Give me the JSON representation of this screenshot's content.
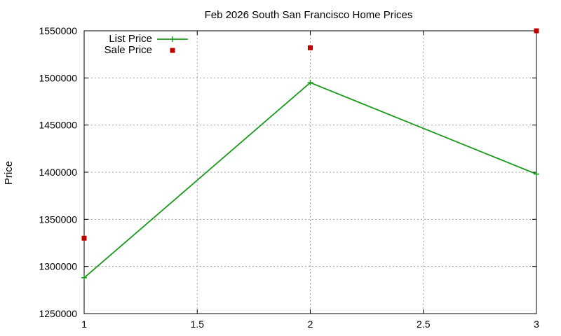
{
  "chart_data": {
    "type": "line",
    "title": "Feb 2026 South San Francisco Home Prices",
    "xlabel": "",
    "ylabel": "Price",
    "xlim": [
      1,
      3
    ],
    "ylim": [
      1250000,
      1550000
    ],
    "x_ticks": [
      1,
      1.5,
      2,
      2.5,
      3
    ],
    "x_tick_labels": [
      "1",
      "1.5",
      "2",
      "2.5",
      "3"
    ],
    "y_ticks": [
      1250000,
      1300000,
      1350000,
      1400000,
      1450000,
      1500000,
      1550000
    ],
    "y_tick_labels": [
      "1250000",
      "1300000",
      "1350000",
      "1400000",
      "1450000",
      "1500000",
      "1550000"
    ],
    "grid": true,
    "legend_position": "top-left",
    "series": [
      {
        "name": "List Price",
        "style": "line-with-plus-markers",
        "color": "#1a9a1a",
        "x": [
          1,
          2,
          3
        ],
        "values": [
          1288000,
          1495000,
          1398000
        ]
      },
      {
        "name": "Sale Price",
        "style": "square-markers",
        "color": "#c00000",
        "x": [
          1,
          2,
          3
        ],
        "values": [
          1330000,
          1532000,
          1550000
        ]
      }
    ]
  }
}
